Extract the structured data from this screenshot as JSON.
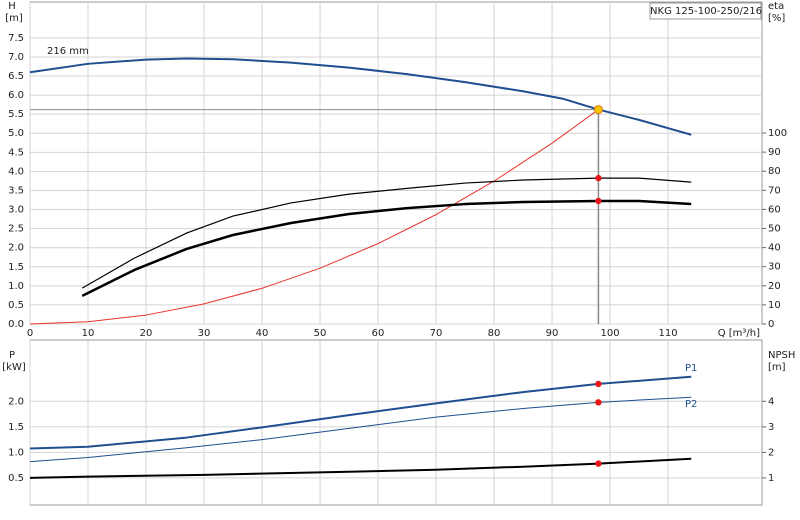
{
  "chart_data": [
    {
      "type": "line",
      "title": "NKG 125-100-250/216",
      "curve_label": "216 mm",
      "ylabel": "H",
      "yunit": "[m]",
      "y2label": "eta",
      "y2unit": "[%]",
      "xlabel": "Q [m³/h]",
      "xlim": [
        0,
        126.2
      ],
      "ylim": [
        0,
        8.44
      ],
      "y2lim": [
        0,
        168.6
      ],
      "xticks": [
        0,
        10,
        20,
        30,
        40,
        50,
        60,
        70,
        80,
        90,
        100,
        110
      ],
      "yticks": [
        {
          "value": 0,
          "label": "0.0"
        },
        0.5,
        {
          "value": 1,
          "label": "1.0"
        },
        1.5,
        {
          "value": 2,
          "label": "2.0"
        },
        2.5,
        {
          "value": 3,
          "label": "3.0"
        },
        3.5,
        {
          "value": 4,
          "label": "4.0"
        },
        4.5,
        {
          "value": 5,
          "label": "5.0"
        },
        5.5,
        {
          "value": 6,
          "label": "6.0"
        },
        6.5,
        {
          "value": 7,
          "label": "7.0"
        },
        7.5
      ],
      "y2ticks": [
        0,
        10,
        20,
        30,
        40,
        50,
        60,
        70,
        80,
        90,
        100
      ],
      "show_xtick_labels": true,
      "grid": true,
      "duty_point": {
        "x": 98,
        "y": 5.62
      },
      "series": [
        {
          "color": "#1f4f8f",
          "line_width": 2,
          "x": [
            0,
            10,
            20,
            27,
            35,
            45,
            55,
            65,
            75,
            85,
            92,
            98,
            105,
            114
          ],
          "values": [
            6.6,
            6.82,
            6.93,
            6.96,
            6.94,
            6.85,
            6.72,
            6.55,
            6.34,
            6.1,
            5.9,
            5.62,
            5.35,
            4.96
          ]
        },
        {
          "color": "#e8332a",
          "line_width": 1,
          "x": [
            0,
            10,
            20,
            30,
            40,
            50,
            60,
            70,
            80,
            90,
            98
          ],
          "values": [
            0,
            0.059,
            0.234,
            0.527,
            0.936,
            1.463,
            2.107,
            2.867,
            3.745,
            4.74,
            5.62
          ]
        },
        {
          "color": "#000000",
          "line_width": 1.2,
          "axis": "y2",
          "x": [
            9,
            18,
            27,
            35,
            45,
            55,
            65,
            75,
            85,
            98,
            105,
            114
          ],
          "values": [
            18.8,
            34.5,
            47.6,
            56.5,
            63.4,
            68,
            71,
            73.8,
            75.4,
            76.4,
            76.4,
            74.3
          ],
          "duty": {
            "x": 98,
            "y": 76.4
          }
        },
        {
          "color": "#000000",
          "line_width": 2.5,
          "axis": "y2",
          "x": [
            9,
            18,
            27,
            35,
            45,
            55,
            65,
            75,
            85,
            98,
            105,
            114
          ],
          "values": [
            14.7,
            28.3,
            39.3,
            46.6,
            52.9,
            57.6,
            60.7,
            62.8,
            63.9,
            64.4,
            64.4,
            62.8
          ],
          "duty": {
            "x": 98,
            "y": 64.4
          }
        }
      ]
    },
    {
      "type": "line",
      "ylabel": "P",
      "yunit": "[kW]",
      "y2label": "NPSH",
      "y2unit": "[m]",
      "xlim": [
        0,
        126.2
      ],
      "ylim": [
        -0.03,
        3.2
      ],
      "y2lim": [
        -0.06,
        6.4
      ],
      "xticks": [
        0,
        10,
        20,
        30,
        40,
        50,
        60,
        70,
        80,
        90,
        100,
        110
      ],
      "yticks": [
        0.5,
        {
          "value": 1,
          "label": "1.0"
        },
        1.5,
        {
          "value": 2,
          "label": "2.0"
        }
      ],
      "y2ticks": [
        1,
        2,
        3,
        4
      ],
      "show_xtick_labels": false,
      "grid": true,
      "series": [
        {
          "name": "P1",
          "color": "#1f4f8f",
          "line_width": 2,
          "x": [
            0,
            10,
            27,
            40,
            55,
            70,
            85,
            98,
            114
          ],
          "values": [
            1.075,
            1.11,
            1.29,
            1.49,
            1.73,
            1.96,
            2.18,
            2.34,
            2.48
          ],
          "duty": {
            "x": 98,
            "y": 2.34
          }
        },
        {
          "name": "P2",
          "color": "#1f4f8f",
          "line_width": 1,
          "x": [
            0,
            10,
            27,
            40,
            55,
            70,
            85,
            98,
            114
          ],
          "values": [
            0.82,
            0.9,
            1.09,
            1.25,
            1.47,
            1.69,
            1.86,
            1.98,
            2.08
          ],
          "duty": {
            "x": 98,
            "y": 1.98
          }
        },
        {
          "color": "#000000",
          "line_width": 2,
          "axis": "y2",
          "x": [
            0,
            10,
            30,
            55,
            70,
            85,
            98,
            114
          ],
          "values": [
            1.0,
            1.05,
            1.12,
            1.24,
            1.32,
            1.44,
            1.56,
            1.75
          ],
          "duty": {
            "x": 98,
            "y": 1.56
          }
        }
      ]
    }
  ]
}
